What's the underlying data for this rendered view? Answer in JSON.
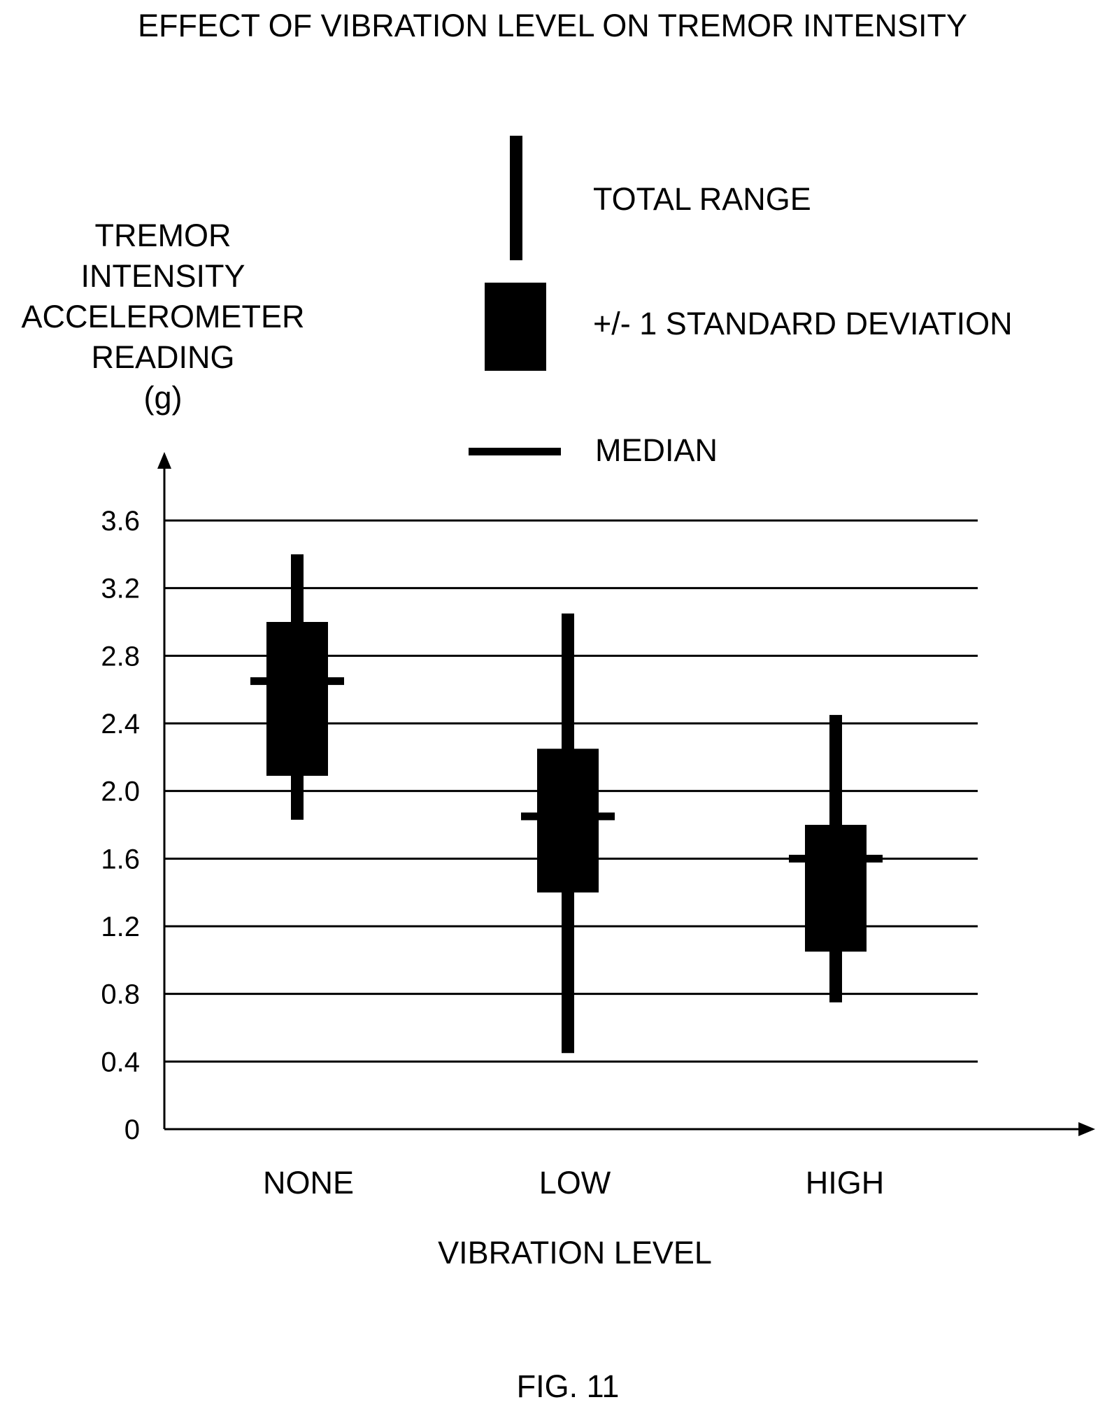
{
  "chart_data": {
    "type": "box",
    "title": "EFFECT OF VIBRATION LEVEL ON TREMOR INTENSITY",
    "ylabel_lines": [
      "TREMOR",
      "INTENSITY",
      "ACCELEROMETER",
      "READING",
      "(g)"
    ],
    "xlabel": "VIBRATION LEVEL",
    "ylim": [
      0,
      3.6
    ],
    "yticks": [
      "0",
      "0.4",
      "0.8",
      "1.2",
      "1.6",
      "2.0",
      "2.4",
      "2.8",
      "3.2",
      "3.6"
    ],
    "ytick_values": [
      0,
      0.4,
      0.8,
      1.2,
      1.6,
      2.0,
      2.4,
      2.8,
      3.2,
      3.6
    ],
    "categories": [
      "NONE",
      "LOW",
      "HIGH"
    ],
    "boxes": [
      {
        "category": "NONE",
        "range_min": 1.83,
        "range_max": 3.4,
        "sd_low": 2.09,
        "sd_high": 3.0,
        "median": 2.65
      },
      {
        "category": "LOW",
        "range_min": 0.45,
        "range_max": 3.05,
        "sd_low": 1.4,
        "sd_high": 2.25,
        "median": 1.85
      },
      {
        "category": "HIGH",
        "range_min": 0.75,
        "range_max": 2.45,
        "sd_low": 1.05,
        "sd_high": 1.8,
        "median": 1.6
      }
    ],
    "legend": {
      "range_label": "TOTAL RANGE",
      "sd_label": "+/- 1 STANDARD DEVIATION",
      "median_label": "MEDIAN",
      "placement": "top-center"
    },
    "grid": true
  },
  "figure_label": "FIG. 11"
}
